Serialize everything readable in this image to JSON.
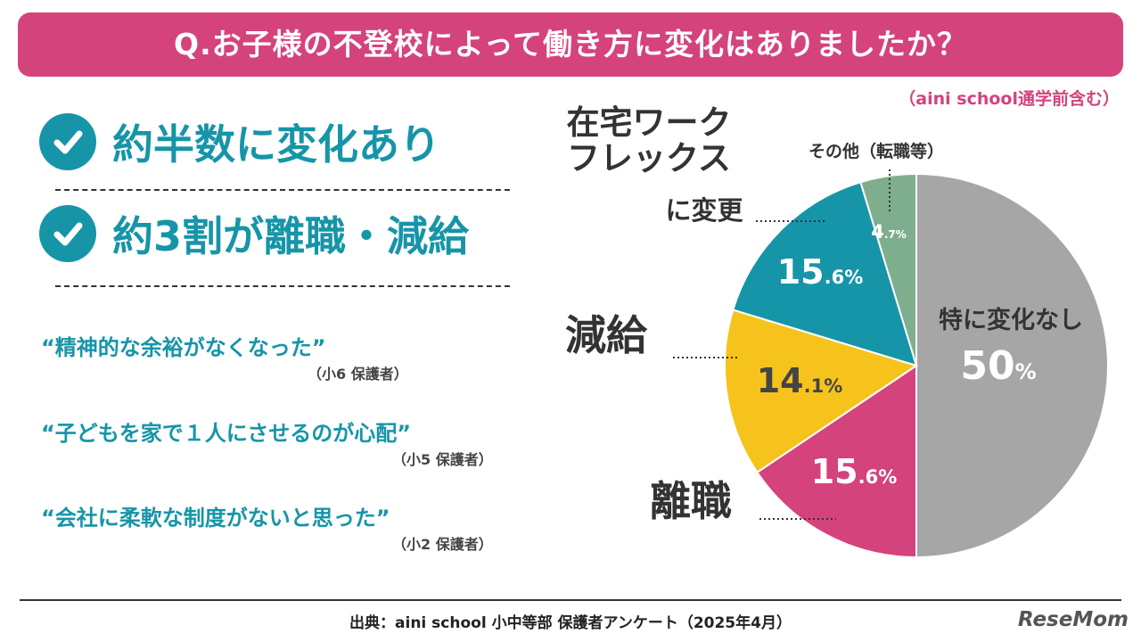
{
  "header": {
    "title": "Q.お子様の不登校によって働き方に変化はありましたか？",
    "note": "（aini school通学前含む）"
  },
  "highlights": [
    {
      "text": "約半数に変化あり"
    },
    {
      "text": "約3割が離職・減給"
    }
  ],
  "quotes": [
    {
      "text": "“精神的な余裕がなくなった”",
      "attribution": "（小6 保護者）"
    },
    {
      "text": "“子どもを家で１人にさせるのが心配”",
      "attribution": "（小5 保護者）"
    },
    {
      "text": "“会社に柔軟な制度がないと思った”",
      "attribution": "（小2 保護者）"
    }
  ],
  "chart_data": {
    "type": "pie",
    "title": "",
    "slices": [
      {
        "label": "特に変化なし",
        "value": 50,
        "value_text": "50",
        "unit": "%",
        "color": "#a6a6a6",
        "callout": ""
      },
      {
        "label": "離職",
        "value": 15.6,
        "value_text": "15.6",
        "unit": "%",
        "color": "#d4437c",
        "callout": "離職"
      },
      {
        "label": "減給",
        "value": 14.1,
        "value_text": "14.1",
        "unit": "%",
        "color": "#f6c31c",
        "callout": "減給"
      },
      {
        "label": "在宅ワーク フレックス に変更",
        "value": 15.6,
        "value_text": "15.6",
        "unit": "%",
        "color": "#1695a8",
        "callout": "在宅ワーク\nフレックス\nに変更"
      },
      {
        "label": "その他（転職等）",
        "value": 4.7,
        "value_text": "4.7",
        "unit": "%",
        "color": "#7fae8f",
        "callout": "その他（転職等）"
      }
    ]
  },
  "footer": {
    "source": "出典：aini school 小中等部 保護者アンケート（2025年4月）",
    "logo": "ReseMom"
  }
}
